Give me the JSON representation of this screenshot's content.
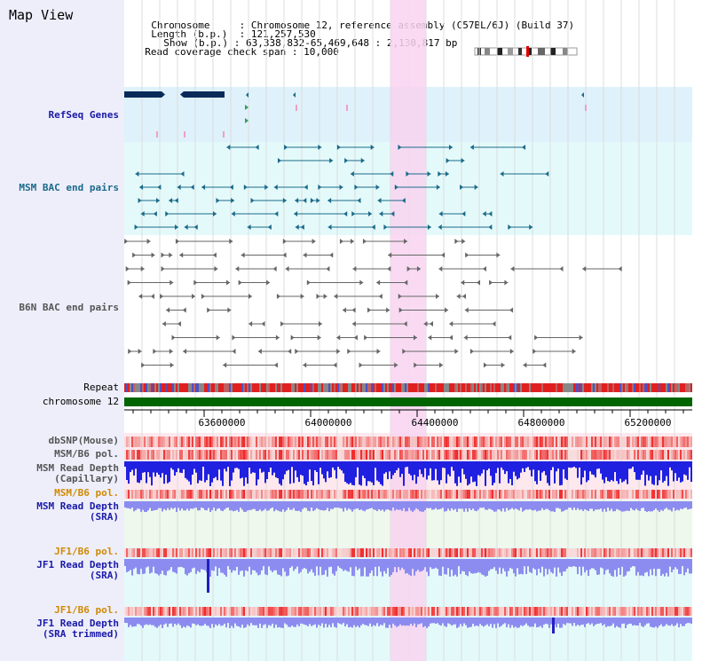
{
  "app_title": "Map View",
  "header": {
    "chromosome_label": "Chromosome",
    "chromosome_value": "Chromosome 12, reference assembly (C57BL/6J) (Build 37)",
    "length_label": "Length (b.p.)",
    "length_value": "121,257,530",
    "show_label": "Show (b.p.)",
    "show_value": "63,338,832-65,469,648 : 2,130,817 bp",
    "coverage_label": "Read coverage check span",
    "coverage_value": "10,000"
  },
  "tracks": {
    "refseq": "RefSeq Genes",
    "msm_bac": "MSM BAC end pairs",
    "b6n_bac": "B6N BAC end pairs",
    "repeat": "Repeat",
    "chromosome": "chromosome 12",
    "dbsnp": "dbSNP(Mouse)",
    "msm_b6_pol_1": "MSM/B6 pol.",
    "msm_read_depth_cap_1": "MSM Read Depth",
    "msm_read_depth_cap_2": "(Capillary)",
    "msm_b6_pol_2": "MSM/B6 pol.",
    "msm_read_depth_sra_1": "MSM Read Depth",
    "msm_read_depth_sra_2": "(SRA)",
    "jf1_b6_pol_1": "JF1/B6 pol.",
    "jf1_read_depth_sra_1": "JF1 Read Depth",
    "jf1_read_depth_sra_2": "(SRA)",
    "jf1_b6_pol_2": "JF1/B6 pol.",
    "jf1_read_depth_trim_1": "JF1 Read Depth",
    "jf1_read_depth_trim_2": "(SRA trimmed)"
  },
  "axis": {
    "ticks": [
      "63600000",
      "64000000",
      "64400000",
      "64800000",
      "65200000"
    ]
  },
  "colors": {
    "highlight": "#f8d4f0",
    "refseq_bg": "#dff1fb",
    "msm_bac_bg": "#e4fafa",
    "chromosome_bar": "#006400",
    "gene": "#0a2a5a",
    "msm_feature": "#1a6a8a",
    "b6n_feature": "#666666",
    "depth_blue": "#2020e0",
    "depth_lavender": "#8c8cf0",
    "pol_red": "#f04040"
  }
}
